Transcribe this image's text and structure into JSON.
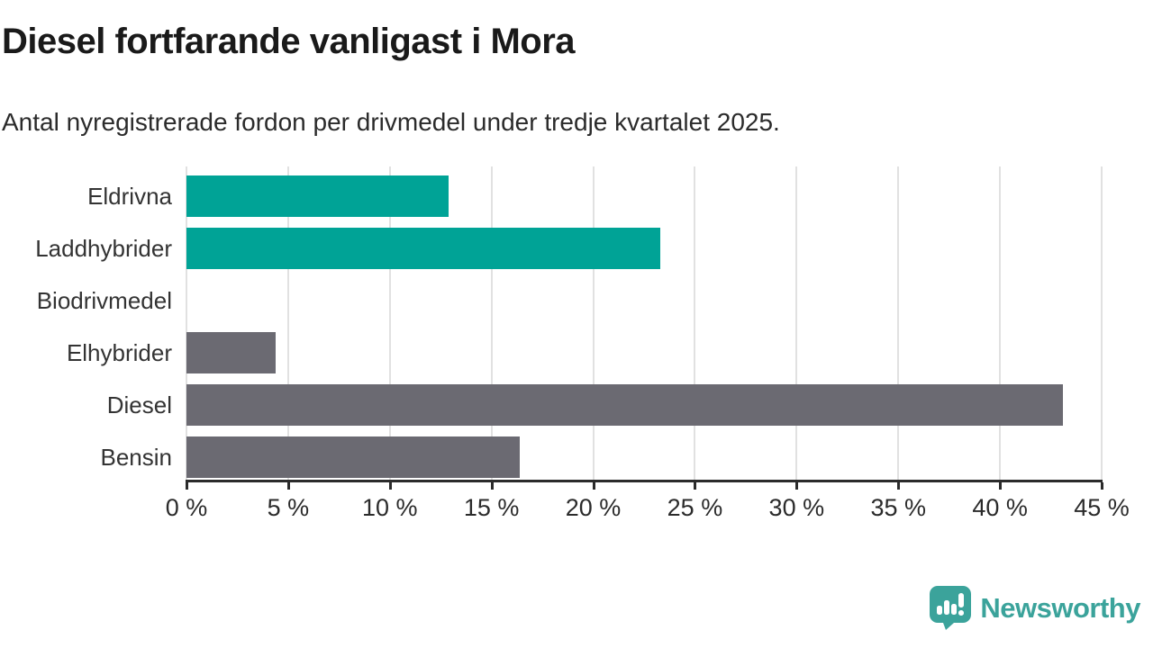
{
  "header": {
    "title": "Diesel fortfarande vanligast i Mora",
    "subtitle": "Antal nyregistrerade fordon per drivmedel under tredje kvartalet 2025."
  },
  "chart_data": {
    "type": "bar",
    "orientation": "horizontal",
    "title": "Diesel fortfarande vanligast i Mora",
    "subtitle": "Antal nyregistrerade fordon per drivmedel under tredje kvartalet 2025.",
    "categories": [
      "Eldrivna",
      "Laddhybrider",
      "Biodrivmedel",
      "Elhybrider",
      "Diesel",
      "Bensin"
    ],
    "values": [
      12.9,
      23.3,
      0,
      4.4,
      43.1,
      16.4
    ],
    "unit": "%",
    "bar_colors": [
      "#00a396",
      "#00a396",
      "#6b6a72",
      "#6b6a72",
      "#6b6a72",
      "#6b6a72"
    ],
    "xlim": [
      0,
      45
    ],
    "x_ticks": [
      0,
      5,
      10,
      15,
      20,
      25,
      30,
      35,
      40,
      45
    ],
    "x_tick_labels": [
      "0 %",
      "5 %",
      "10 %",
      "15 %",
      "20 %",
      "25 %",
      "30 %",
      "35 %",
      "40 %",
      "45 %"
    ],
    "grid": true,
    "legend": false
  },
  "colors": {
    "accent_teal": "#00a396",
    "neutral_gray": "#6b6a72",
    "gridline": "#e1e1e1",
    "axis": "#2b2b2b",
    "title_text": "#1a1a1a",
    "body_text": "#333333",
    "brand_teal": "#3ba39b"
  },
  "footer": {
    "brand": "Newsworthy",
    "logo_icon": "newsworthy-speech-bubble-chart-icon"
  }
}
